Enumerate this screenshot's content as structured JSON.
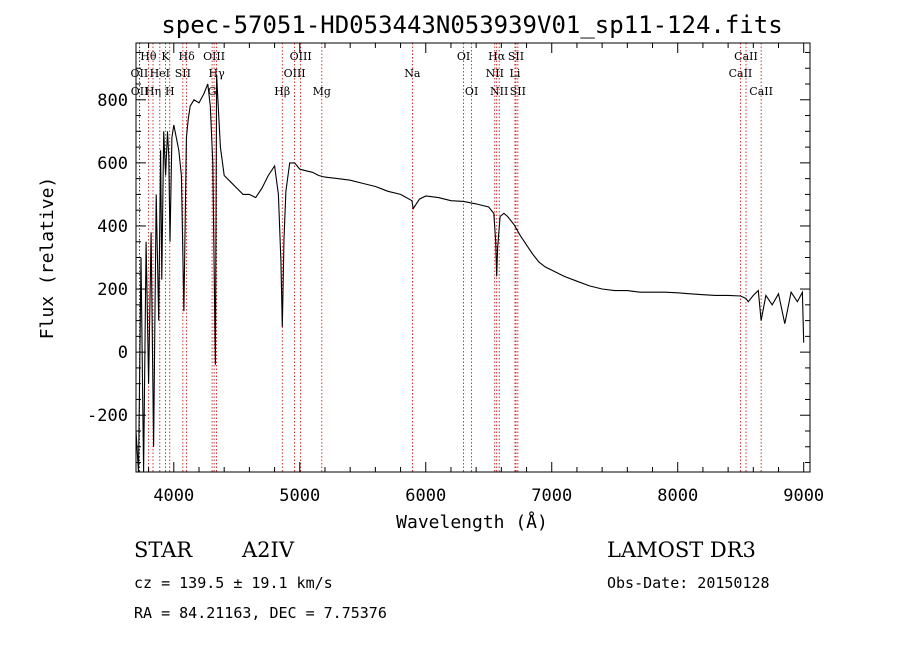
{
  "chart_data": {
    "type": "line",
    "title": "spec-57051-HD053443N053939V01_sp11-124.fits",
    "xlabel": "Wavelength (Å)",
    "ylabel": "Flux (relative)",
    "xlim": [
      3700,
      9050
    ],
    "ylim": [
      -380,
      980
    ],
    "xticks": [
      4000,
      5000,
      6000,
      7000,
      8000,
      9000
    ],
    "yticks": [
      -200,
      0,
      200,
      400,
      600,
      800
    ],
    "grid": false,
    "series": [
      {
        "name": "spectrum",
        "x": [
          3700,
          3720,
          3740,
          3760,
          3780,
          3800,
          3820,
          3840,
          3860,
          3880,
          3895,
          3905,
          3920,
          3935,
          3950,
          3960,
          3970,
          3985,
          4000,
          4020,
          4040,
          4060,
          4080,
          4100,
          4115,
          4130,
          4160,
          4200,
          4240,
          4270,
          4290,
          4310,
          4330,
          4340,
          4350,
          4370,
          4400,
          4450,
          4500,
          4550,
          4600,
          4650,
          4700,
          4750,
          4800,
          4830,
          4850,
          4861,
          4875,
          4890,
          4920,
          4960,
          5000,
          5050,
          5100,
          5150,
          5200,
          5300,
          5400,
          5500,
          5600,
          5700,
          5800,
          5890,
          5900,
          5950,
          6000,
          6100,
          6200,
          6300,
          6400,
          6500,
          6540,
          6555,
          6563,
          6570,
          6590,
          6620,
          6650,
          6700,
          6750,
          6800,
          6850,
          6900,
          6950,
          7000,
          7100,
          7200,
          7300,
          7400,
          7500,
          7600,
          7700,
          7800,
          7900,
          8000,
          8100,
          8200,
          8300,
          8400,
          8500,
          8542,
          8560,
          8600,
          8640,
          8662,
          8700,
          8750,
          8800,
          8850,
          8900,
          8950,
          8990,
          9000
        ],
        "y": [
          -250,
          -380,
          300,
          -380,
          350,
          -100,
          380,
          -300,
          500,
          100,
          640,
          230,
          700,
          560,
          700,
          620,
          350,
          680,
          720,
          680,
          640,
          560,
          130,
          680,
          740,
          780,
          800,
          790,
          820,
          850,
          780,
          600,
          -40,
          880,
          800,
          650,
          560,
          540,
          520,
          500,
          500,
          490,
          520,
          560,
          590,
          500,
          290,
          80,
          360,
          510,
          600,
          600,
          580,
          575,
          570,
          560,
          555,
          550,
          545,
          535,
          525,
          510,
          500,
          480,
          455,
          485,
          495,
          490,
          480,
          478,
          470,
          460,
          440,
          350,
          240,
          330,
          430,
          440,
          430,
          405,
          370,
          340,
          310,
          285,
          270,
          260,
          240,
          225,
          210,
          200,
          195,
          195,
          190,
          190,
          190,
          188,
          185,
          182,
          180,
          180,
          178,
          170,
          160,
          180,
          195,
          100,
          180,
          150,
          185,
          90,
          190,
          160,
          190,
          30
        ]
      }
    ],
    "spectral_lines": [
      {
        "label": "OII",
        "wavelength": 3727,
        "row": 2
      },
      {
        "label": "OII",
        "wavelength": 3729,
        "row": 3
      },
      {
        "label": "Hθ",
        "wavelength": 3798,
        "row": 1
      },
      {
        "label": "Hη",
        "wavelength": 3835,
        "row": 3
      },
      {
        "label": "HeI",
        "wavelength": 3889,
        "row": 2
      },
      {
        "label": "K",
        "wavelength": 3934,
        "row": 1
      },
      {
        "label": "H",
        "wavelength": 3968,
        "row": 3
      },
      {
        "label": "SII",
        "wavelength": 4072,
        "row": 2
      },
      {
        "label": "Hδ",
        "wavelength": 4102,
        "row": 1
      },
      {
        "label": "G",
        "wavelength": 4304,
        "row": 3
      },
      {
        "label": "OIII",
        "wavelength": 4320,
        "row": 1
      },
      {
        "label": "Hγ",
        "wavelength": 4340,
        "row": 2
      },
      {
        "label": "Hβ",
        "wavelength": 4861,
        "row": 3
      },
      {
        "label": "OIII",
        "wavelength": 4959,
        "row": 2
      },
      {
        "label": "OIII",
        "wavelength": 5007,
        "row": 1
      },
      {
        "label": "Mg",
        "wavelength": 5175,
        "row": 3
      },
      {
        "label": "Na",
        "wavelength": 5894,
        "row": 2
      },
      {
        "label": "OI",
        "wavelength": 6300,
        "row": 1
      },
      {
        "label": "OI",
        "wavelength": 6364,
        "row": 3
      },
      {
        "label": "NII",
        "wavelength": 6548,
        "row": 2
      },
      {
        "label": "Hα",
        "wavelength": 6563,
        "row": 1
      },
      {
        "label": "NII",
        "wavelength": 6583,
        "row": 3
      },
      {
        "label": "Li",
        "wavelength": 6708,
        "row": 2
      },
      {
        "label": "SII",
        "wavelength": 6716,
        "row": 1
      },
      {
        "label": "SII",
        "wavelength": 6731,
        "row": 3
      },
      {
        "label": "CaII",
        "wavelength": 8498,
        "row": 2
      },
      {
        "label": "CaII",
        "wavelength": 8542,
        "row": 1
      },
      {
        "label": "CaII",
        "wavelength": 8662,
        "row": 3
      }
    ]
  },
  "info": {
    "object_class": "STAR",
    "subclass": "A2IV",
    "survey": "LAMOST DR3",
    "cz": "cz = 139.5 ± 19.1 km/s",
    "obs_date": "Obs-Date: 20150128",
    "coords": "RA =  84.21163, DEC =   7.75376"
  },
  "colors": {
    "line_marker": "#cc0000",
    "spectrum": "#000000",
    "axes": "#000000"
  }
}
